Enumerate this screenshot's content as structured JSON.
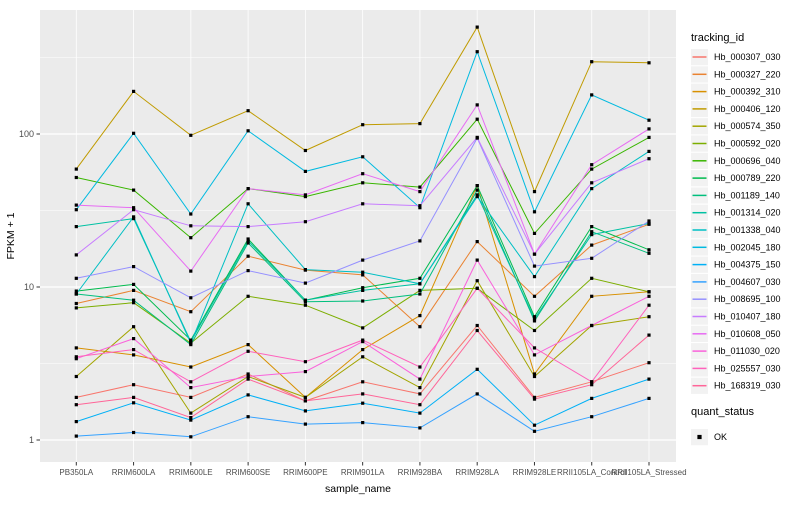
{
  "chart": {
    "y_axis_title": "FPKM + 1",
    "x_axis_title": "sample_name",
    "legend_title": "tracking_id",
    "legend2_title": "quant_status",
    "legend2_items": [
      {
        "label": "OK",
        "marker": "black-square"
      }
    ],
    "panel_background": "#EBEBEB",
    "grid_color": "#FFFFFF",
    "tick_color": "#333333",
    "tick_label_color": "#4D4D4D",
    "legend_key_fill": "#F2F2F2"
  },
  "chart_data": {
    "type": "line",
    "title": "",
    "xlabel": "sample_name",
    "ylabel": "FPKM + 1",
    "y_scale": "log10",
    "ylim": [
      1,
      650
    ],
    "y_ticks": [
      1,
      10,
      100
    ],
    "y_tick_labels": [
      "1",
      "10",
      "100"
    ],
    "y_minor_ticks": [
      3.162,
      31.62,
      316.2
    ],
    "grid": "white major and minor on gray panel",
    "legend_position": "right",
    "point_marker": "small-black-square",
    "categories": [
      "PB350LA",
      "RRIM600LA",
      "RRIM600LE",
      "RRIM600SE",
      "RRIM600PE",
      "RRIM901LA",
      "RRIM928BA",
      "RRIM928LA",
      "RRIM928LE",
      "RRII105LA_Control",
      "RRII105LA_Stressed"
    ],
    "series": [
      {
        "name": "Hb_000307_030",
        "color": "#F8766D",
        "values": [
          1.9,
          2.3,
          1.9,
          2.7,
          1.8,
          2.4,
          2.0,
          5.6,
          1.9,
          2.4,
          3.2
        ]
      },
      {
        "name": "Hb_000327_220",
        "color": "#EA8331",
        "values": [
          7.8,
          9.5,
          6.9,
          15.9,
          12.9,
          12.0,
          5.5,
          19.8,
          8.7,
          18.8,
          25.7
        ]
      },
      {
        "name": "Hb_000392_310",
        "color": "#D89000",
        "values": [
          4.0,
          3.6,
          3.0,
          4.2,
          1.9,
          3.9,
          6.5,
          46,
          2.7,
          8.7,
          9.3
        ]
      },
      {
        "name": "Hb_000406_120",
        "color": "#C09B00",
        "values": [
          59,
          190,
          98,
          142,
          78,
          115,
          117,
          500,
          42,
          297,
          292
        ]
      },
      {
        "name": "Hb_000574_350",
        "color": "#A3A500",
        "values": [
          2.6,
          5.5,
          1.5,
          2.6,
          1.9,
          3.5,
          2.2,
          11,
          2.6,
          5.6,
          6.4
        ]
      },
      {
        "name": "Hb_000592_020",
        "color": "#7CAE00",
        "values": [
          7.3,
          7.9,
          4.3,
          8.7,
          7.6,
          5.4,
          9.5,
          9.8,
          5.2,
          11.4,
          9.3
        ]
      },
      {
        "name": "Hb_000696_040",
        "color": "#39B600",
        "values": [
          52,
          43,
          21,
          44,
          39,
          48,
          45,
          125,
          22.4,
          59,
          95
        ]
      },
      {
        "name": "Hb_000789_220",
        "color": "#00BB4E",
        "values": [
          9.4,
          10.4,
          4.5,
          20.6,
          8.2,
          9.9,
          11.4,
          46,
          6.4,
          24.8,
          17.5
        ]
      },
      {
        "name": "Hb_001189_140",
        "color": "#00BF7D",
        "values": [
          9.0,
          8.2,
          4.2,
          19.4,
          8.0,
          8.1,
          9.0,
          43,
          6.0,
          23,
          16.6
        ]
      },
      {
        "name": "Hb_001314_020",
        "color": "#00C1A3",
        "values": [
          24.8,
          28,
          4.4,
          20,
          8.2,
          9.5,
          10.5,
          40,
          6.2,
          22,
          26
        ]
      },
      {
        "name": "Hb_001338_040",
        "color": "#00BFC4",
        "values": [
          9.0,
          28.7,
          4.3,
          35,
          13,
          12.5,
          10.5,
          39,
          11.7,
          44,
          77
        ]
      },
      {
        "name": "Hb_002045_180",
        "color": "#00BAE0",
        "values": [
          32,
          101,
          30,
          105,
          57,
          71,
          33,
          345,
          31,
          180,
          123
        ]
      },
      {
        "name": "Hb_004375_150",
        "color": "#00B0F6",
        "values": [
          1.32,
          1.75,
          1.35,
          1.97,
          1.55,
          1.74,
          1.5,
          2.9,
          1.25,
          1.87,
          2.5
        ]
      },
      {
        "name": "Hb_004607_030",
        "color": "#35A2FF",
        "values": [
          1.06,
          1.12,
          1.05,
          1.42,
          1.27,
          1.3,
          1.2,
          2.0,
          1.14,
          1.42,
          1.87
        ]
      },
      {
        "name": "Hb_008695_100",
        "color": "#9590FF",
        "values": [
          11.4,
          13.6,
          8.5,
          12.8,
          10.6,
          15,
          20,
          94,
          13.7,
          15.4,
          27
        ]
      },
      {
        "name": "Hb_010407_180",
        "color": "#C77CFF",
        "values": [
          16.2,
          32,
          25.1,
          24.8,
          26.7,
          35,
          34,
          95,
          16.4,
          48,
          69
        ]
      },
      {
        "name": "Hb_010608_050",
        "color": "#E76BF3",
        "values": [
          34.3,
          33,
          12.7,
          44,
          40,
          55,
          42,
          155,
          16.4,
          63,
          108
        ]
      },
      {
        "name": "Hb_011030_020",
        "color": "#FA62DB",
        "values": [
          3.4,
          4.6,
          2.2,
          2.6,
          2.8,
          4.4,
          2.5,
          15,
          3.6,
          5.6,
          8.7
        ]
      },
      {
        "name": "Hb_025557_030",
        "color": "#FF62BC",
        "values": [
          3.5,
          3.9,
          2.4,
          3.8,
          3.25,
          4.5,
          3.0,
          9.8,
          4.0,
          2.4,
          7.6
        ]
      },
      {
        "name": "Hb_168319_030",
        "color": "#FF6598",
        "values": [
          1.7,
          1.9,
          1.4,
          2.5,
          1.8,
          2.0,
          1.7,
          5.2,
          1.85,
          2.3,
          4.85
        ]
      }
    ]
  }
}
